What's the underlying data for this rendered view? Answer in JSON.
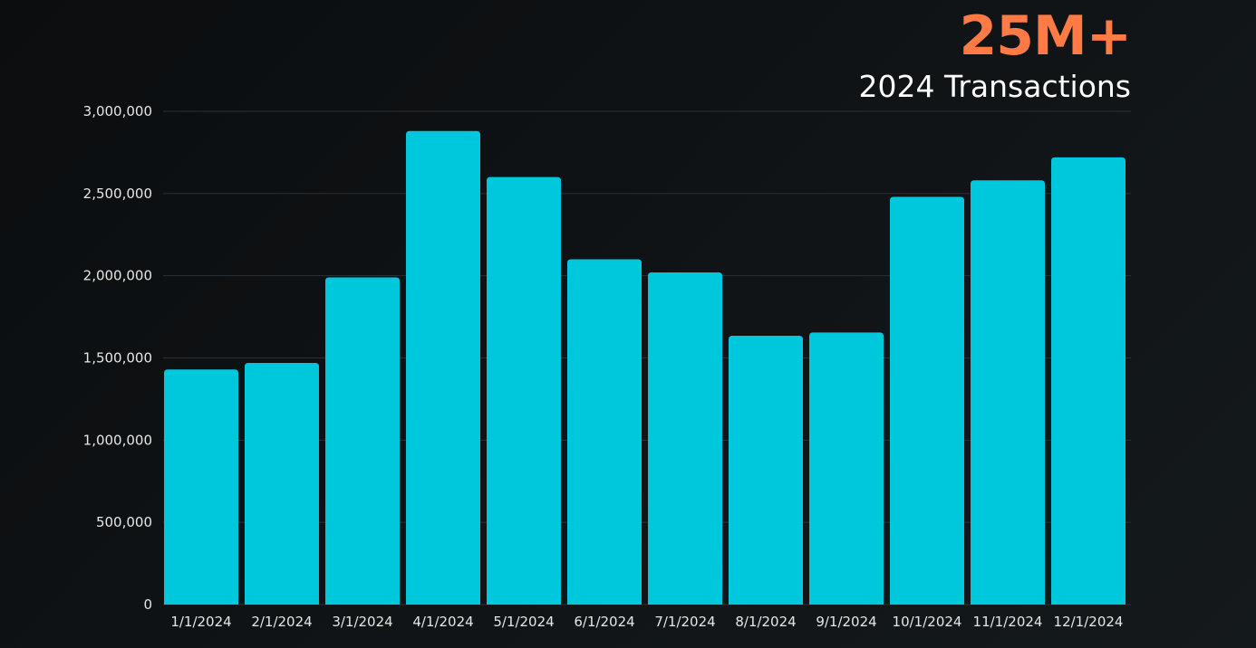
{
  "headline": {
    "value": "25M+",
    "subtitle": "2024 Transactions",
    "value_color": "#ff7a45"
  },
  "colors": {
    "bar": "#00c8dc",
    "grid": "#2a3035",
    "text": "#e6e6e6"
  },
  "chart_data": {
    "type": "bar",
    "title": "",
    "xlabel": "",
    "ylabel": "",
    "categories": [
      "1/1/2024",
      "2/1/2024",
      "3/1/2024",
      "4/1/2024",
      "5/1/2024",
      "6/1/2024",
      "7/1/2024",
      "8/1/2024",
      "9/1/2024",
      "10/1/2024",
      "11/1/2024",
      "12/1/2024"
    ],
    "values": [
      1430000,
      1470000,
      1990000,
      2880000,
      2600000,
      2100000,
      2020000,
      1635000,
      1655000,
      2480000,
      2580000,
      2720000
    ],
    "ylim": [
      0,
      3000000
    ],
    "yticks": [
      0,
      500000,
      1000000,
      1500000,
      2000000,
      2500000,
      3000000
    ],
    "ytick_labels": [
      "0",
      "500,000",
      "1,000,000",
      "1,500,000",
      "2,000,000",
      "2,500,000",
      "3,000,000"
    ],
    "grid": true,
    "legend": "none"
  }
}
